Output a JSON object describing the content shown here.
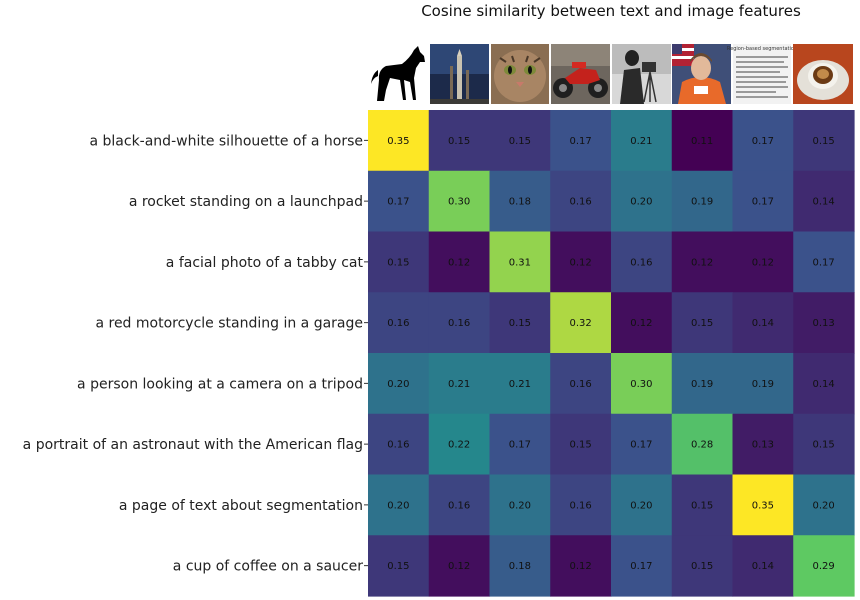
{
  "chart_data": {
    "type": "heatmap",
    "title": "Cosine similarity between text and image features",
    "rows": [
      "a black-and-white silhouette of a horse",
      "a rocket standing on a launchpad",
      "a facial photo of a tabby cat",
      "a red motorcycle standing in a garage",
      "a person looking at a camera on a tripod",
      "a portrait of an astronaut with the American flag",
      "a page of text about segmentation",
      "a cup of coffee on a saucer"
    ],
    "columns": [
      "horse",
      "rocket",
      "cat",
      "motorcycle",
      "camera-tripod",
      "astronaut",
      "text-page",
      "coffee"
    ],
    "values": [
      [
        0.35,
        0.15,
        0.15,
        0.17,
        0.21,
        0.11,
        0.17,
        0.15
      ],
      [
        0.17,
        0.3,
        0.18,
        0.16,
        0.2,
        0.19,
        0.17,
        0.14
      ],
      [
        0.15,
        0.12,
        0.31,
        0.12,
        0.16,
        0.12,
        0.12,
        0.17
      ],
      [
        0.16,
        0.16,
        0.15,
        0.32,
        0.12,
        0.15,
        0.14,
        0.13
      ],
      [
        0.2,
        0.21,
        0.21,
        0.16,
        0.3,
        0.19,
        0.19,
        0.14
      ],
      [
        0.16,
        0.22,
        0.17,
        0.15,
        0.17,
        0.28,
        0.13,
        0.15
      ],
      [
        0.2,
        0.16,
        0.2,
        0.16,
        0.2,
        0.15,
        0.35,
        0.2
      ],
      [
        0.15,
        0.12,
        0.18,
        0.12,
        0.17,
        0.15,
        0.14,
        0.29
      ]
    ],
    "color_scale": "viridis",
    "value_range": [
      0.11,
      0.35
    ],
    "grid": false,
    "legend": "none"
  },
  "thumbnails": {
    "text_page_heading": "Region-based segmentation"
  },
  "colors": {
    "background": "#ffffff",
    "text": "#222222"
  }
}
